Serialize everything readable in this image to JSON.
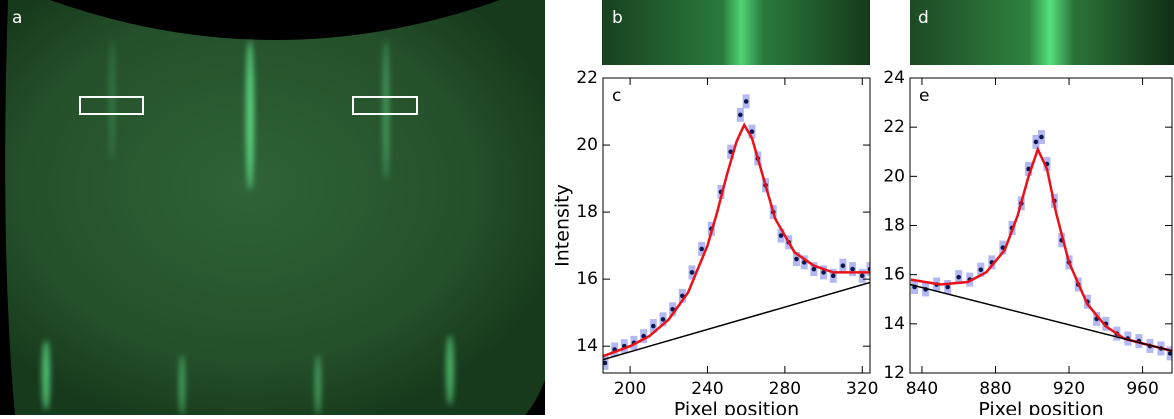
{
  "figure": {
    "panel_labels": [
      "a",
      "b",
      "d"
    ]
  },
  "chart_data": [
    {
      "type": "scatter",
      "panel_label": "c",
      "xlabel": "Pixel position",
      "ylabel": "Intensity",
      "xlim": [
        186,
        324
      ],
      "ylim": [
        13.2,
        22
      ],
      "xticks": [
        200,
        240,
        280,
        320
      ],
      "yticks": [
        14,
        16,
        18,
        20,
        22
      ],
      "series": [
        {
          "type": "scatter",
          "color": "#0b1a4d",
          "x": [
            187,
            192,
            197,
            202,
            207,
            212,
            217,
            222,
            227,
            232,
            237,
            242,
            247,
            252,
            257,
            260,
            263,
            266,
            270,
            274,
            278,
            282,
            286,
            290,
            295,
            300,
            305,
            310,
            315,
            320,
            324
          ],
          "values": [
            13.5,
            13.9,
            14.0,
            14.1,
            14.3,
            14.6,
            14.8,
            15.1,
            15.5,
            16.2,
            16.9,
            17.5,
            18.6,
            19.8,
            20.9,
            21.3,
            20.4,
            19.6,
            18.8,
            18.0,
            17.3,
            17.1,
            16.6,
            16.5,
            16.3,
            16.2,
            16.1,
            16.4,
            16.3,
            16.1,
            16.3
          ]
        },
        {
          "type": "line",
          "color": "#e8111a",
          "x": [
            186,
            200,
            210,
            220,
            230,
            240,
            245,
            250,
            255,
            259,
            263,
            268,
            275,
            285,
            295,
            305,
            315,
            324
          ],
          "values": [
            13.7,
            14.0,
            14.3,
            14.8,
            15.6,
            17.0,
            18.0,
            19.1,
            20.1,
            20.6,
            20.2,
            19.2,
            17.8,
            16.8,
            16.4,
            16.2,
            16.2,
            16.2
          ]
        },
        {
          "type": "line",
          "color": "#000000",
          "x": [
            186,
            324
          ],
          "values": [
            13.6,
            15.9
          ]
        }
      ]
    },
    {
      "type": "scatter",
      "panel_label": "e",
      "xlabel": "Pixel position",
      "xlim": [
        833.5,
        976
      ],
      "ylim": [
        12,
        24
      ],
      "xticks": [
        840,
        880,
        920,
        960
      ],
      "yticks": [
        12,
        14,
        16,
        18,
        20,
        22,
        24
      ],
      "series": [
        {
          "type": "scatter",
          "color": "#0b1a4d",
          "x": [
            836,
            842,
            848,
            854,
            860,
            866,
            872,
            878,
            884,
            889,
            894,
            898,
            902,
            905,
            908,
            912,
            916,
            920,
            925,
            930,
            935,
            940,
            946,
            952,
            958,
            964,
            970,
            975
          ],
          "values": [
            15.5,
            15.4,
            15.6,
            15.5,
            15.9,
            15.8,
            16.2,
            16.5,
            17.1,
            17.9,
            18.9,
            20.3,
            21.4,
            21.6,
            20.5,
            19.0,
            17.4,
            16.5,
            15.6,
            14.9,
            14.2,
            14.0,
            13.6,
            13.4,
            13.3,
            13.1,
            13.0,
            12.8
          ]
        },
        {
          "type": "line",
          "color": "#e8111a",
          "x": [
            834,
            850,
            865,
            875,
            885,
            892,
            898,
            903,
            908,
            913,
            920,
            930,
            940,
            950,
            960,
            976
          ],
          "values": [
            15.8,
            15.6,
            15.7,
            16.1,
            17.0,
            18.4,
            20.0,
            21.1,
            20.3,
            18.5,
            16.5,
            14.8,
            13.9,
            13.4,
            13.2,
            12.9
          ]
        },
        {
          "type": "line",
          "color": "#000000",
          "x": [
            833.5,
            976
          ],
          "values": [
            15.6,
            12.9
          ]
        }
      ]
    }
  ]
}
